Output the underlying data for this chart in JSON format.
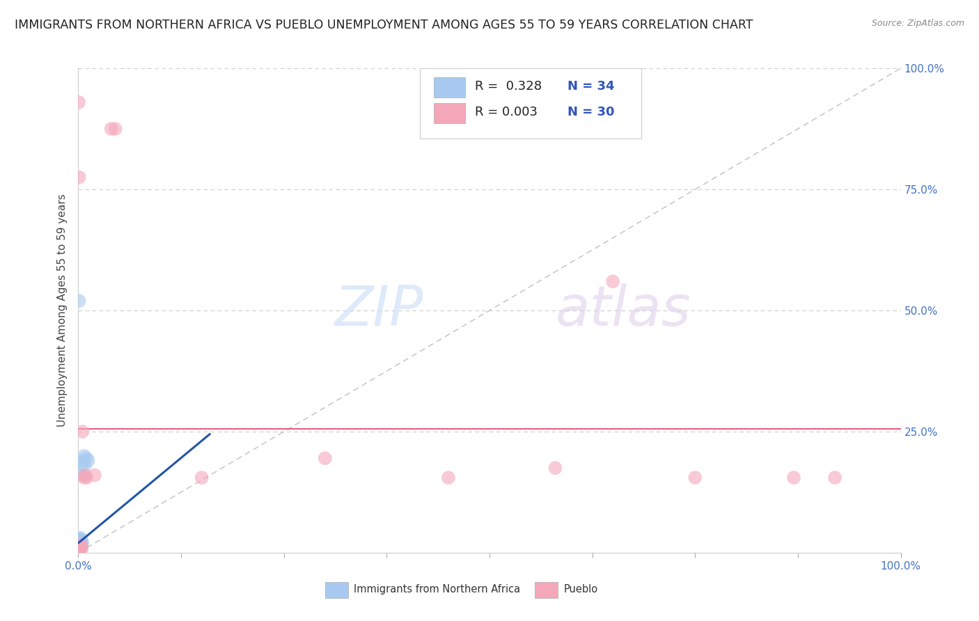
{
  "title": "IMMIGRANTS FROM NORTHERN AFRICA VS PUEBLO UNEMPLOYMENT AMONG AGES 55 TO 59 YEARS CORRELATION CHART",
  "source_text": "Source: ZipAtlas.com",
  "ylabel": "Unemployment Among Ages 55 to 59 years",
  "watermark_zip": "ZIP",
  "watermark_atlas": "atlas",
  "legend_R1": "R =  0.328",
  "legend_N1": "N = 34",
  "legend_R2": "R = 0.003",
  "legend_N2": "N = 30",
  "xlim": [
    0,
    1.0
  ],
  "ylim": [
    0,
    1.0
  ],
  "ytick_positions": [
    0.25,
    0.5,
    0.75,
    1.0
  ],
  "ytick_labels": [
    "25.0%",
    "50.0%",
    "75.0%",
    "100.0%"
  ],
  "blue_color": "#a8caf0",
  "pink_color": "#f4a7b9",
  "trend_line_color": "#2255aa",
  "diag_line_color": "#b0b0b0",
  "pink_hline_color": "#e05070",
  "blue_scatter": [
    [
      0.001,
      0.005
    ],
    [
      0.001,
      0.008
    ],
    [
      0.001,
      0.012
    ],
    [
      0.001,
      0.015
    ],
    [
      0.001,
      0.02
    ],
    [
      0.001,
      0.022
    ],
    [
      0.001,
      0.025
    ],
    [
      0.001,
      0.03
    ],
    [
      0.002,
      0.01
    ],
    [
      0.002,
      0.015
    ],
    [
      0.002,
      0.02
    ],
    [
      0.002,
      0.025
    ],
    [
      0.003,
      0.018
    ],
    [
      0.003,
      0.022
    ],
    [
      0.003,
      0.03
    ],
    [
      0.004,
      0.025
    ],
    [
      0.004,
      0.16
    ],
    [
      0.004,
      0.18
    ],
    [
      0.005,
      0.02
    ],
    [
      0.005,
      0.19
    ],
    [
      0.007,
      0.2
    ],
    [
      0.008,
      0.18
    ],
    [
      0.01,
      0.195
    ],
    [
      0.012,
      0.19
    ],
    [
      0.001,
      0.52
    ],
    [
      0.0005,
      0.005
    ],
    [
      0.0005,
      0.008
    ],
    [
      0.0005,
      0.003
    ],
    [
      0.0008,
      0.006
    ],
    [
      0.0008,
      0.01
    ],
    [
      0.0003,
      0.004
    ],
    [
      0.0003,
      0.007
    ],
    [
      0.0002,
      0.003
    ],
    [
      0.0002,
      0.006
    ]
  ],
  "pink_scatter": [
    [
      0.0005,
      0.93
    ],
    [
      0.04,
      0.875
    ],
    [
      0.045,
      0.875
    ],
    [
      0.001,
      0.775
    ],
    [
      0.001,
      0.005
    ],
    [
      0.001,
      0.01
    ],
    [
      0.001,
      0.015
    ],
    [
      0.002,
      0.008
    ],
    [
      0.002,
      0.012
    ],
    [
      0.003,
      0.01
    ],
    [
      0.003,
      0.015
    ],
    [
      0.004,
      0.008
    ],
    [
      0.004,
      0.012
    ],
    [
      0.005,
      0.25
    ],
    [
      0.007,
      0.155
    ],
    [
      0.008,
      0.16
    ],
    [
      0.01,
      0.155
    ],
    [
      0.02,
      0.16
    ],
    [
      0.15,
      0.155
    ],
    [
      0.3,
      0.195
    ],
    [
      0.45,
      0.155
    ],
    [
      0.58,
      0.175
    ],
    [
      0.65,
      0.56
    ],
    [
      0.75,
      0.155
    ],
    [
      0.87,
      0.155
    ],
    [
      0.92,
      0.155
    ],
    [
      0.001,
      0.003
    ],
    [
      0.0005,
      0.005
    ],
    [
      0.0008,
      0.007
    ],
    [
      0.0003,
      0.002
    ]
  ],
  "pink_hline_y": 0.255,
  "bg_color": "#ffffff",
  "title_fontsize": 12.5,
  "axis_label_fontsize": 11,
  "tick_fontsize": 11,
  "legend_fontsize": 13
}
